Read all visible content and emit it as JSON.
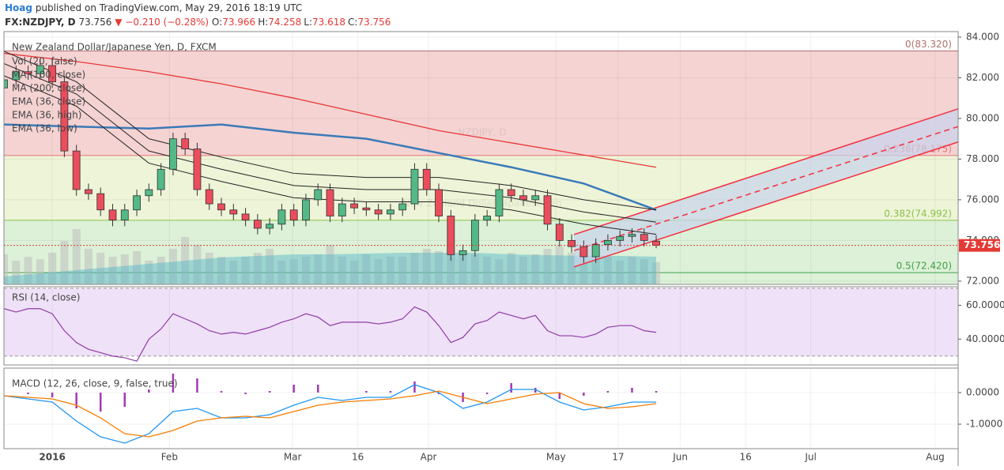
{
  "header": {
    "author": "Hoag",
    "published": "published on TradingView.com, May 29, 2016 18:19 UTC",
    "symbol": "FX:NZDJPY, D",
    "last": "73.756",
    "change": "▼ −0.210 (−0.28%)",
    "ohlc": [
      [
        "O:",
        "73.966"
      ],
      [
        "H:",
        "74.258"
      ],
      [
        "L:",
        "73.618"
      ],
      [
        "C:",
        "73.756"
      ]
    ]
  },
  "chart_data": [
    {
      "type": "candlestick",
      "title": "New Zealand Dollar/Japanese Yen, D, FXCM",
      "watermark": "NZDJPY, D",
      "watermark_subtitle": "New Zealand Dollar/Japanese Yen",
      "up_color": "#53b987",
      "down_color": "#eb4d5c",
      "xlim": [
        0,
        158
      ],
      "xticks": [
        {
          "value": 8,
          "label": "2016"
        },
        {
          "value": 27.4,
          "label": "Feb"
        },
        {
          "value": 47.8,
          "label": "Mar"
        },
        {
          "value": 58.6,
          "label": "16"
        },
        {
          "value": 70.3,
          "label": "Apr"
        },
        {
          "value": 91.4,
          "label": "May"
        },
        {
          "value": 101.7,
          "label": "17"
        },
        {
          "value": 112,
          "label": "Jun"
        },
        {
          "value": 122.8,
          "label": "16"
        },
        {
          "value": 133.6,
          "label": "Jul"
        },
        {
          "value": 154.2,
          "label": "Aug"
        }
      ],
      "ylim": [
        71.84,
        84.27
      ],
      "yticks": [
        {
          "value": 72,
          "label": "72.000"
        },
        {
          "value": 74,
          "label": "74.000"
        },
        {
          "value": 76,
          "label": "76.000"
        },
        {
          "value": 78,
          "label": "78.000"
        },
        {
          "value": 80,
          "label": "80.000"
        },
        {
          "value": 82,
          "label": "82.000"
        },
        {
          "value": 84,
          "label": "84.000"
        }
      ],
      "x": [
        0,
        2,
        4,
        6,
        8,
        10,
        12,
        14,
        16,
        18,
        20,
        22,
        24,
        26,
        28,
        30,
        32,
        34,
        36,
        38,
        40,
        42,
        44,
        46,
        48,
        50,
        52,
        54,
        56,
        58,
        60,
        62,
        64,
        66,
        68,
        70,
        72,
        74,
        76,
        78,
        80,
        82,
        84,
        86,
        88,
        90,
        92,
        94,
        96,
        98,
        100,
        102,
        104,
        106,
        108
      ],
      "open": [
        81.5,
        81.9,
        82.3,
        82.2,
        82.6,
        81.8,
        78.4,
        76.5,
        76.3,
        75.5,
        75.0,
        75.5,
        76.2,
        76.5,
        77.5,
        79.0,
        78.5,
        76.5,
        75.8,
        75.5,
        75.3,
        75.0,
        74.6,
        74.8,
        75.5,
        75.0,
        76.0,
        76.5,
        75.2,
        75.8,
        75.6,
        75.5,
        75.3,
        75.5,
        75.8,
        77.5,
        76.5,
        75.2,
        73.3,
        73.5,
        75.0,
        75.2,
        76.5,
        76.2,
        76.0,
        76.2,
        74.8,
        74.0,
        73.7,
        73.2,
        73.8,
        74.0,
        74.2,
        74.3,
        73.966
      ],
      "high": [
        82.2,
        82.6,
        82.6,
        82.9,
        82.9,
        82.1,
        78.7,
        76.8,
        76.6,
        75.8,
        75.8,
        76.5,
        76.8,
        77.8,
        79.3,
        79.3,
        78.8,
        76.8,
        76.1,
        75.8,
        75.6,
        75.3,
        75.1,
        75.8,
        75.8,
        76.3,
        76.8,
        76.8,
        76.1,
        76.1,
        75.9,
        75.8,
        75.8,
        76.1,
        77.8,
        77.8,
        76.8,
        75.5,
        73.8,
        75.3,
        75.5,
        76.8,
        76.8,
        76.5,
        76.5,
        76.5,
        75.1,
        74.3,
        74.0,
        74.1,
        74.3,
        74.5,
        74.6,
        74.6,
        74.258
      ],
      "low": [
        81.2,
        81.6,
        81.9,
        81.9,
        81.5,
        78.1,
        76.2,
        76.0,
        75.2,
        74.7,
        74.7,
        75.2,
        75.9,
        76.2,
        77.2,
        78.2,
        76.2,
        75.5,
        75.2,
        75.0,
        74.7,
        74.3,
        74.3,
        74.5,
        74.7,
        74.7,
        75.7,
        74.9,
        74.9,
        75.3,
        75.2,
        75.0,
        75.0,
        75.2,
        75.5,
        76.2,
        74.9,
        73.0,
        73.0,
        73.2,
        74.7,
        74.9,
        75.9,
        75.7,
        75.7,
        74.5,
        73.7,
        73.4,
        72.9,
        72.9,
        73.5,
        73.7,
        73.9,
        73.7,
        73.618
      ],
      "close": [
        81.9,
        82.3,
        82.2,
        82.6,
        81.8,
        78.4,
        76.5,
        76.3,
        75.5,
        75.0,
        75.5,
        76.2,
        76.5,
        77.5,
        79.0,
        78.5,
        76.5,
        75.8,
        75.5,
        75.3,
        75.0,
        74.6,
        74.8,
        75.5,
        75.0,
        76.0,
        76.5,
        75.2,
        75.8,
        75.6,
        75.5,
        75.3,
        75.5,
        75.8,
        77.5,
        76.5,
        75.2,
        73.3,
        73.5,
        75.0,
        75.2,
        76.5,
        76.2,
        76.0,
        76.2,
        74.8,
        74.0,
        73.7,
        73.2,
        73.8,
        74.0,
        74.2,
        74.3,
        74.0,
        73.756
      ],
      "volume": {
        "name": "Vol (20, false)",
        "color": "#bdbdbd",
        "values": [
          38,
          30,
          35,
          32,
          40,
          55,
          70,
          45,
          40,
          35,
          38,
          42,
          30,
          35,
          45,
          60,
          50,
          40,
          35,
          30,
          35,
          40,
          45,
          30,
          32,
          35,
          38,
          50,
          35,
          30,
          38,
          32,
          35,
          35,
          40,
          45,
          42,
          55,
          40,
          38,
          35,
          32,
          40,
          35,
          38,
          45,
          48,
          40,
          42,
          38,
          35,
          30,
          35,
          32,
          28
        ],
        "ma_color": "#4fb3c8",
        "ma_x": [
          0,
          6,
          12,
          18,
          24,
          30,
          36,
          42,
          48,
          54,
          60,
          66,
          72,
          78,
          84,
          90,
          96,
          102,
          108
        ],
        "ma_values": [
          10,
          14,
          18,
          22,
          26,
          30,
          34,
          36,
          38,
          38,
          39,
          40,
          40,
          40,
          38,
          37,
          36,
          36,
          35
        ]
      },
      "lines": [
        {
          "name": "MA (100, close)",
          "color": "#3a7ab8",
          "width": 2.5,
          "x": [
            0,
            12,
            24,
            36,
            48,
            60,
            72,
            84,
            96,
            108
          ],
          "values": [
            79.7,
            79.6,
            79.5,
            79.7,
            79.3,
            79.0,
            78.3,
            77.6,
            76.8,
            75.5
          ]
        },
        {
          "name": "MA (200, close)",
          "color": "#e53935",
          "width": 1.3,
          "x": [
            0,
            12,
            24,
            36,
            48,
            60,
            72,
            84,
            96,
            108
          ],
          "values": [
            83.2,
            82.8,
            82.3,
            81.7,
            81.0,
            80.2,
            79.4,
            78.8,
            78.2,
            77.6
          ]
        },
        {
          "name": "EMA (36, close)",
          "color": "#222222",
          "width": 1,
          "x": [
            0,
            12,
            24,
            36,
            48,
            60,
            72,
            84,
            96,
            108
          ],
          "values": [
            82.7,
            81.2,
            78.4,
            77.5,
            76.7,
            76.5,
            76.5,
            76.1,
            75.4,
            74.9
          ]
        },
        {
          "name": "EMA (36, high)",
          "color": "#222222",
          "width": 1,
          "x": [
            0,
            12,
            24,
            36,
            48,
            60,
            72,
            84,
            96,
            108
          ],
          "values": [
            83.3,
            81.8,
            79.0,
            78.1,
            77.3,
            77.1,
            77.1,
            76.7,
            76.0,
            75.5
          ]
        },
        {
          "name": "EMA (36, low)",
          "color": "#222222",
          "width": 1,
          "x": [
            0,
            12,
            24,
            36,
            48,
            60,
            72,
            84,
            96,
            108
          ],
          "values": [
            82.1,
            80.6,
            77.8,
            76.9,
            76.1,
            75.9,
            75.9,
            75.5,
            74.8,
            74.3
          ]
        }
      ],
      "fib_levels": [
        {
          "value": 83.32,
          "label": "0(83.320)",
          "color": "#b0706a",
          "fill": "#f5d3d3"
        },
        {
          "value": 78.175,
          "label": "0.236(78.175)",
          "color": "#e57373",
          "fill": "#eef4d8"
        },
        {
          "value": 74.992,
          "label": "0.382(74.992)",
          "color": "#8bc34a",
          "fill": "#dcf1d8"
        },
        {
          "value": 72.42,
          "label": "0.5(72.420)",
          "color": "#43a047",
          "fill": "#dcf1d8"
        }
      ],
      "channel": {
        "color": "#f23645",
        "fill": "#c8d3ec",
        "upper": {
          "x": [
            94.4,
            158
          ],
          "values": [
            74.29,
            80.47
          ]
        },
        "middle": {
          "x": [
            94.4,
            158
          ],
          "values": [
            73.5,
            79.6
          ]
        },
        "lower": {
          "x": [
            94.4,
            158
          ],
          "values": [
            72.7,
            78.84
          ]
        }
      },
      "last_price": {
        "value": 73.756,
        "label": "73.756",
        "color": "#e53935"
      }
    },
    {
      "type": "rsi",
      "title": "RSI (14, close)",
      "band": [
        30,
        70
      ],
      "band_color": "#efe1f7",
      "ylim": [
        24.76,
        70.95
      ],
      "yticks": [
        {
          "value": 40,
          "label": "40.0000"
        },
        {
          "value": 60,
          "label": "60.0000"
        }
      ],
      "x": [
        0,
        2,
        4,
        6,
        8,
        10,
        12,
        14,
        16,
        18,
        20,
        22,
        24,
        26,
        28,
        30,
        32,
        34,
        36,
        38,
        40,
        42,
        44,
        46,
        48,
        50,
        52,
        54,
        56,
        58,
        60,
        62,
        64,
        66,
        68,
        70,
        72,
        74,
        76,
        78,
        80,
        82,
        84,
        86,
        88,
        90,
        92,
        94,
        96,
        98,
        100,
        102,
        104,
        106,
        108
      ],
      "series": [
        {
          "color": "#8e3ba6",
          "values": [
            58,
            56,
            58,
            58,
            55,
            45,
            38,
            34,
            32,
            30,
            29,
            27,
            40,
            46,
            55,
            52,
            49,
            45,
            43,
            44,
            43,
            45,
            47,
            50,
            52,
            55,
            53,
            48,
            50,
            50,
            50,
            49,
            50,
            52,
            59,
            56,
            48,
            38,
            41,
            49,
            51,
            56,
            54,
            52,
            54,
            45,
            42,
            42,
            41,
            43,
            47,
            48,
            48,
            45,
            44
          ]
        }
      ]
    },
    {
      "type": "macd",
      "title": "MACD (12, 26, close, 9, false, true)",
      "ylim": [
        -1.775,
        0.775
      ],
      "yticks": [
        {
          "value": -1,
          "label": "-1.0000"
        },
        {
          "value": 0,
          "label": "0.0000"
        }
      ],
      "x": [
        0,
        4,
        8,
        12,
        16,
        20,
        24,
        28,
        32,
        36,
        40,
        44,
        48,
        52,
        56,
        60,
        64,
        68,
        72,
        76,
        80,
        84,
        88,
        92,
        96,
        100,
        104,
        108
      ],
      "histogram": {
        "color": "#a23ab5",
        "values": [
          0,
          -0.05,
          -0.15,
          -0.5,
          -0.6,
          -0.45,
          0.1,
          0.6,
          0.45,
          0.05,
          -0.05,
          0.05,
          0.25,
          0.25,
          0.0,
          0.05,
          0.05,
          0.35,
          -0.05,
          -0.3,
          -0.05,
          0.3,
          0.15,
          -0.2,
          -0.1,
          0.05,
          0.15,
          0.05
        ]
      },
      "series": [
        {
          "color": "#2196f3",
          "values": [
            -0.1,
            -0.2,
            -0.3,
            -0.9,
            -1.4,
            -1.6,
            -1.3,
            -0.6,
            -0.5,
            -0.8,
            -0.8,
            -0.7,
            -0.4,
            -0.15,
            -0.25,
            -0.15,
            -0.15,
            0.25,
            0.0,
            -0.5,
            -0.3,
            0.1,
            0.1,
            -0.3,
            -0.55,
            -0.45,
            -0.3,
            -0.3
          ]
        },
        {
          "color": "#f57c00",
          "values": [
            -0.1,
            -0.15,
            -0.2,
            -0.4,
            -0.8,
            -1.3,
            -1.4,
            -1.2,
            -0.9,
            -0.8,
            -0.75,
            -0.8,
            -0.6,
            -0.4,
            -0.3,
            -0.25,
            -0.2,
            -0.1,
            0.05,
            -0.15,
            -0.35,
            -0.2,
            -0.05,
            0.0,
            -0.35,
            -0.5,
            -0.45,
            -0.35
          ]
        }
      ]
    }
  ]
}
